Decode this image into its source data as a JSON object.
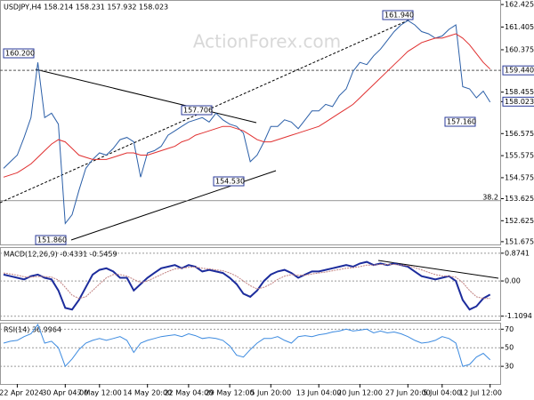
{
  "chart_data": [
    {
      "type": "line",
      "title": "USDJPY,H4  158.214 158.231 157.932 158.023",
      "watermark": "ActionForex.com",
      "categories": [
        null,
        null,
        "22 Apr 2024",
        null,
        null,
        null,
        null,
        null,
        null,
        "30 Apr 04:00",
        null,
        null,
        null,
        null,
        "7 May 12:00",
        null,
        null,
        null,
        null,
        null,
        null,
        "14 May 20:00",
        null,
        null,
        null,
        null,
        null,
        "22 May 04:00",
        null,
        null,
        null,
        null,
        null,
        "29 May 12:00",
        null,
        null,
        null,
        null,
        null,
        "5 Jun 20:00",
        null,
        null,
        null,
        null,
        null,
        null,
        "13 Jun 04:00",
        null,
        null,
        null,
        null,
        null,
        "20 Jun 12:00",
        null,
        null,
        null,
        null,
        null,
        null,
        "27 Jun 20:00",
        null,
        null,
        null,
        null,
        "5 Jul 04:00",
        null,
        null,
        null,
        null,
        null,
        null,
        "12 Jul 12:00"
      ],
      "series": [
        {
          "color": "#2b5fa8",
          "values": [
            155.0,
            155.3,
            155.6,
            156.4,
            157.3,
            159.8,
            157.3,
            157.5,
            157.0,
            152.5,
            152.9,
            154.0,
            155.0,
            155.4,
            155.7,
            155.6,
            155.9,
            156.3,
            156.4,
            156.2,
            154.6,
            155.7,
            155.8,
            156.0,
            156.5,
            156.7,
            156.9,
            157.1,
            157.2,
            157.3,
            157.1,
            157.5,
            157.2,
            157.0,
            156.9,
            156.6,
            155.3,
            155.6,
            156.2,
            156.9,
            156.9,
            157.2,
            157.1,
            156.8,
            157.2,
            157.6,
            157.6,
            157.9,
            157.8,
            158.3,
            158.6,
            159.4,
            159.8,
            159.7,
            160.1,
            160.4,
            160.8,
            161.2,
            161.5,
            161.7,
            161.5,
            161.2,
            161.1,
            160.9,
            161.0,
            161.3,
            161.5,
            158.7,
            158.6,
            158.2,
            158.5,
            158.0
          ]
        },
        {
          "color": "#e03030",
          "values": [
            154.6,
            154.7,
            154.8,
            155.0,
            155.2,
            155.5,
            155.8,
            156.1,
            156.3,
            156.2,
            155.9,
            155.6,
            155.5,
            155.4,
            155.4,
            155.4,
            155.5,
            155.6,
            155.7,
            155.7,
            155.6,
            155.6,
            155.7,
            155.8,
            155.9,
            156.0,
            156.2,
            156.3,
            156.5,
            156.6,
            156.7,
            156.8,
            156.9,
            156.9,
            156.8,
            156.7,
            156.5,
            156.3,
            156.2,
            156.2,
            156.3,
            156.4,
            156.5,
            156.6,
            156.7,
            156.8,
            156.9,
            157.1,
            157.3,
            157.5,
            157.7,
            157.9,
            158.2,
            158.5,
            158.8,
            159.1,
            159.4,
            159.7,
            160.0,
            160.3,
            160.5,
            160.7,
            160.8,
            160.9,
            160.9,
            161.0,
            161.1,
            160.9,
            160.6,
            160.2,
            159.8,
            159.5
          ]
        }
      ],
      "ylim": [
        151.55,
        162.63
      ],
      "yticks": [
        162.425,
        161.405,
        160.375,
        158.455,
        158.023,
        156.575,
        155.575,
        154.575,
        153.625,
        152.625,
        151.675
      ],
      "levels": [
        {
          "value": 159.44,
          "label": "159.440"
        },
        {
          "value": 153.53,
          "label": "38.2"
        }
      ],
      "annotations": [
        "160.200",
        "157.706",
        "161.940",
        "157.160",
        "154.530",
        "151.860"
      ]
    },
    {
      "type": "line",
      "title": "MACD(12,26,9) -0.4331 -0.5459",
      "series": [
        {
          "color": "#1c2c9c",
          "values": [
            0.2,
            0.15,
            0.1,
            0.05,
            0.15,
            0.2,
            0.1,
            0.05,
            -0.3,
            -0.85,
            -0.9,
            -0.6,
            -0.2,
            0.2,
            0.35,
            0.4,
            0.3,
            0.1,
            0.1,
            -0.3,
            -0.1,
            0.1,
            0.25,
            0.4,
            0.45,
            0.5,
            0.4,
            0.5,
            0.45,
            0.3,
            0.35,
            0.3,
            0.25,
            0.1,
            -0.1,
            -0.4,
            -0.5,
            -0.3,
            0.0,
            0.2,
            0.3,
            0.35,
            0.25,
            0.1,
            0.2,
            0.3,
            0.3,
            0.35,
            0.4,
            0.45,
            0.5,
            0.45,
            0.55,
            0.6,
            0.5,
            0.55,
            0.5,
            0.55,
            0.5,
            0.45,
            0.3,
            0.15,
            0.1,
            0.05,
            0.1,
            0.15,
            0.0,
            -0.6,
            -0.9,
            -0.8,
            -0.55,
            -0.43
          ]
        },
        {
          "color": "#c08080",
          "values": [
            0.25,
            0.22,
            0.18,
            0.13,
            0.12,
            0.14,
            0.14,
            0.12,
            0.03,
            -0.2,
            -0.45,
            -0.55,
            -0.5,
            -0.3,
            -0.1,
            0.1,
            0.2,
            0.2,
            0.15,
            0.05,
            -0.05,
            0.0,
            0.1,
            0.2,
            0.3,
            0.38,
            0.4,
            0.43,
            0.44,
            0.4,
            0.38,
            0.35,
            0.32,
            0.25,
            0.15,
            0.0,
            -0.15,
            -0.25,
            -0.2,
            -0.1,
            0.05,
            0.15,
            0.2,
            0.18,
            0.18,
            0.22,
            0.25,
            0.28,
            0.32,
            0.36,
            0.4,
            0.42,
            0.45,
            0.5,
            0.5,
            0.52,
            0.52,
            0.52,
            0.5,
            0.48,
            0.42,
            0.35,
            0.27,
            0.2,
            0.16,
            0.15,
            0.12,
            -0.05,
            -0.3,
            -0.5,
            -0.55,
            -0.55
          ]
        }
      ],
      "ylim": [
        -1.23,
        1.066
      ],
      "yticks": [
        0.8741,
        {
          "value": 0,
          "label": "0.00"
        },
        -1.1094
      ]
    },
    {
      "type": "line",
      "title": "RSI(14) 36.9964",
      "series": [
        {
          "color": "#3d8be0",
          "values": [
            55,
            57,
            58,
            62,
            65,
            75,
            55,
            57,
            50,
            30,
            38,
            48,
            55,
            58,
            60,
            58,
            60,
            62,
            58,
            45,
            55,
            58,
            60,
            62,
            63,
            64,
            62,
            65,
            63,
            60,
            61,
            60,
            58,
            52,
            42,
            40,
            48,
            55,
            60,
            60,
            62,
            58,
            55,
            62,
            63,
            62,
            64,
            65,
            67,
            68,
            70,
            68,
            69,
            70,
            66,
            68,
            66,
            67,
            65,
            62,
            58,
            55,
            56,
            58,
            62,
            60,
            55,
            30,
            32,
            40,
            44,
            37
          ]
        }
      ],
      "ylim": [
        11,
        77
      ],
      "yticks": [
        70,
        50,
        30
      ]
    }
  ]
}
